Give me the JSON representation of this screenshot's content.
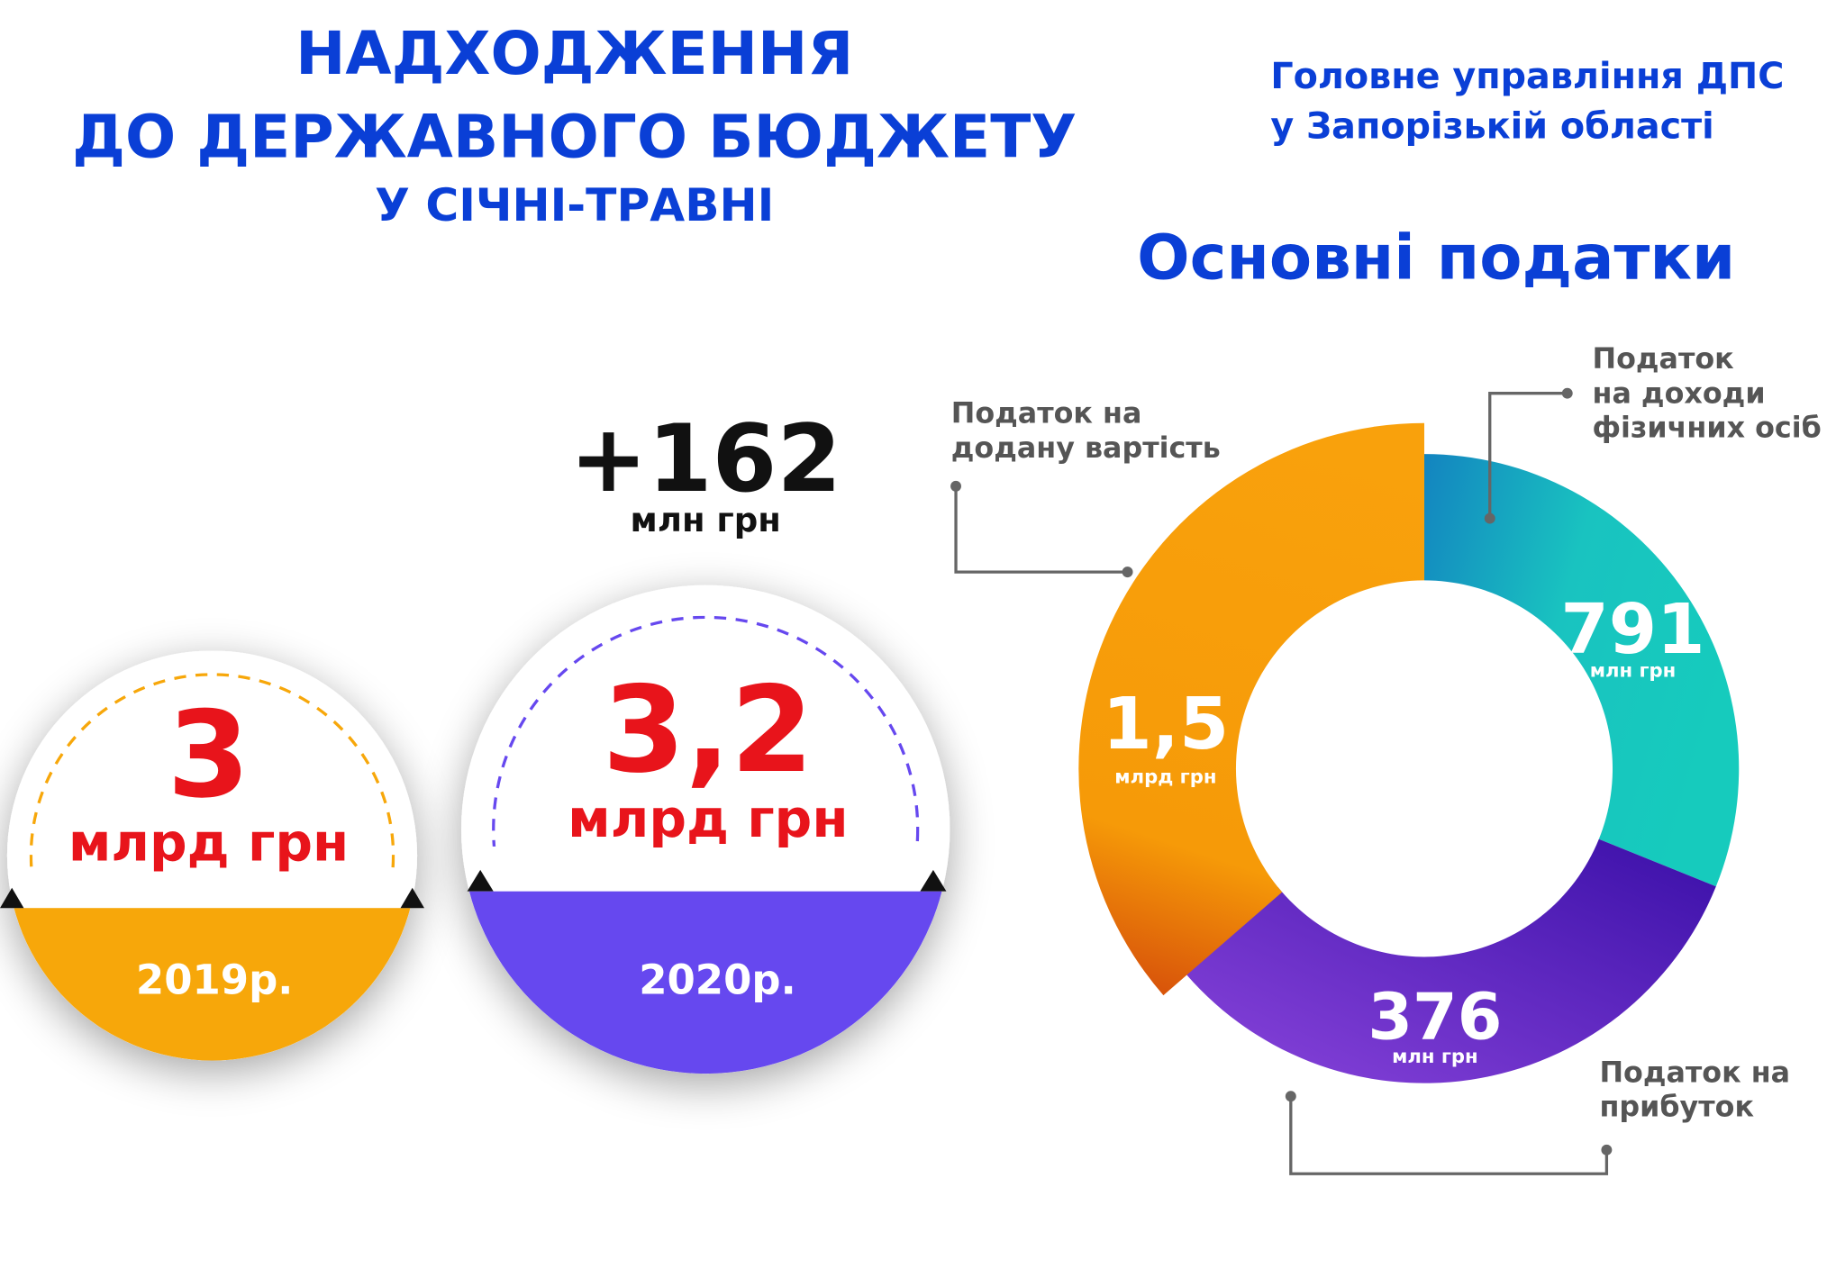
{
  "header": {
    "title_lines": [
      "НАДХОДЖЕННЯ",
      "ДО ДЕРЖАВНОГО БЮДЖЕТУ"
    ],
    "subtitle": "У СІЧНІ-ТРАВНІ"
  },
  "organization": {
    "lines": [
      "Головне управління ДПС",
      "у Запорізькій області"
    ]
  },
  "comparison": {
    "difference": {
      "value": "+162",
      "unit": "млн грн"
    },
    "years": [
      {
        "value": "3",
        "unit": "млрд грн",
        "year": "2019р."
      },
      {
        "value": "3,2",
        "unit": "млрд грн",
        "year": "2020р."
      }
    ]
  },
  "taxes": {
    "title": "Основні податки",
    "items": [
      {
        "label_lines": [
          "Податок на",
          "додану вартість"
        ],
        "value": "1,5",
        "unit": "млрд грн"
      },
      {
        "label_lines": [
          "Податок",
          "на доходи",
          "фізичних осіб"
        ],
        "value": "791",
        "unit": "млн грн"
      },
      {
        "label_lines": [
          "Податок на",
          "прибуток"
        ],
        "value": "376",
        "unit": "млн грн"
      }
    ]
  }
}
